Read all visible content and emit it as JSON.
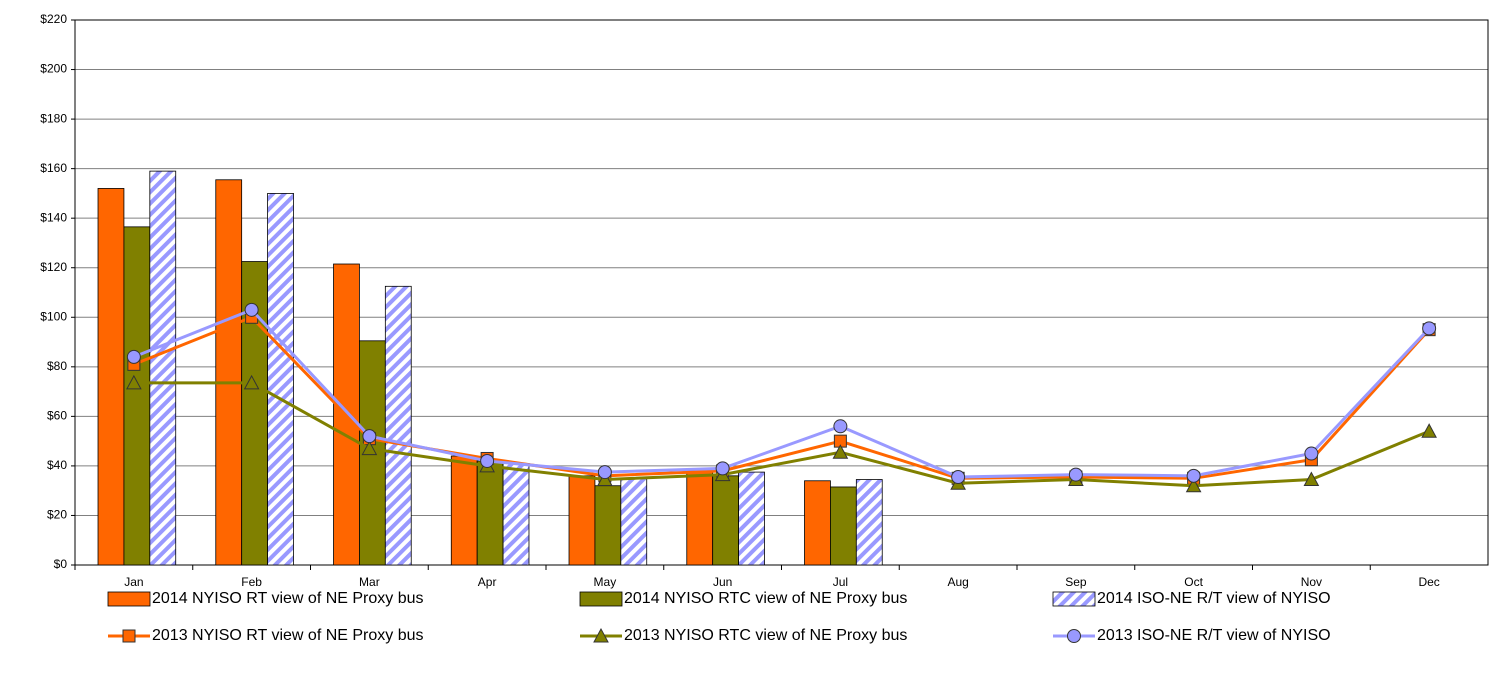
{
  "chart_data": {
    "type": "bar",
    "categories": [
      "Jan",
      "Feb",
      "Mar",
      "Apr",
      "May",
      "Jun",
      "Jul",
      "Aug",
      "Sep",
      "Oct",
      "Nov",
      "Dec"
    ],
    "series": [
      {
        "name": "2014 NYISO RT view of NE Proxy bus",
        "type": "bar",
        "color": "#ff6600",
        "values": [
          152,
          155.5,
          121.5,
          44,
          36,
          38,
          34,
          null,
          null,
          null,
          null,
          null
        ]
      },
      {
        "name": "2014 NYISO RTC view of NE Proxy bus",
        "type": "bar",
        "color": "#808000",
        "values": [
          136.5,
          122.5,
          90.5,
          42,
          32,
          36,
          31.5,
          null,
          null,
          null,
          null,
          null
        ]
      },
      {
        "name": "2014 ISO-NE R/T view of NYISO",
        "type": "bar",
        "color": "#9999ff",
        "pattern": "hatch",
        "values": [
          159,
          150,
          112.5,
          41,
          35,
          37.5,
          34.5,
          null,
          null,
          null,
          null,
          null
        ]
      },
      {
        "name": "2013 NYISO RT view of NE Proxy bus",
        "type": "line",
        "marker": "square",
        "color": "#ff6600",
        "values": [
          81,
          100,
          51,
          43,
          36,
          38,
          50,
          35,
          35.5,
          35,
          42.5,
          95
        ]
      },
      {
        "name": "2013 NYISO RTC view of NE Proxy bus",
        "type": "line",
        "marker": "triangle",
        "color": "#808000",
        "values": [
          73.5,
          73.5,
          47,
          40,
          34.5,
          36.5,
          45.5,
          33,
          34.5,
          32,
          34.5,
          54
        ]
      },
      {
        "name": "2013 ISO-NE R/T view of NYISO",
        "type": "line",
        "marker": "circle",
        "color": "#9999ff",
        "values": [
          84,
          103,
          52,
          42,
          37.5,
          39,
          56,
          35.5,
          36.5,
          36,
          45,
          95.5
        ]
      }
    ],
    "ylim": [
      0,
      220
    ],
    "yticks": [
      {
        "value": 0,
        "label": "$0"
      },
      {
        "value": 20,
        "label": "$20"
      },
      {
        "value": 40,
        "label": "$40"
      },
      {
        "value": 60,
        "label": "$60"
      },
      {
        "value": 80,
        "label": "$80"
      },
      {
        "value": 100,
        "label": "$100"
      },
      {
        "value": 120,
        "label": "$120"
      },
      {
        "value": 140,
        "label": "$140"
      },
      {
        "value": 160,
        "label": "$160"
      },
      {
        "value": 180,
        "label": "$180"
      },
      {
        "value": 200,
        "label": "$200"
      },
      {
        "value": 220,
        "label": "$220"
      }
    ],
    "grid": true,
    "legend": "bottom"
  }
}
